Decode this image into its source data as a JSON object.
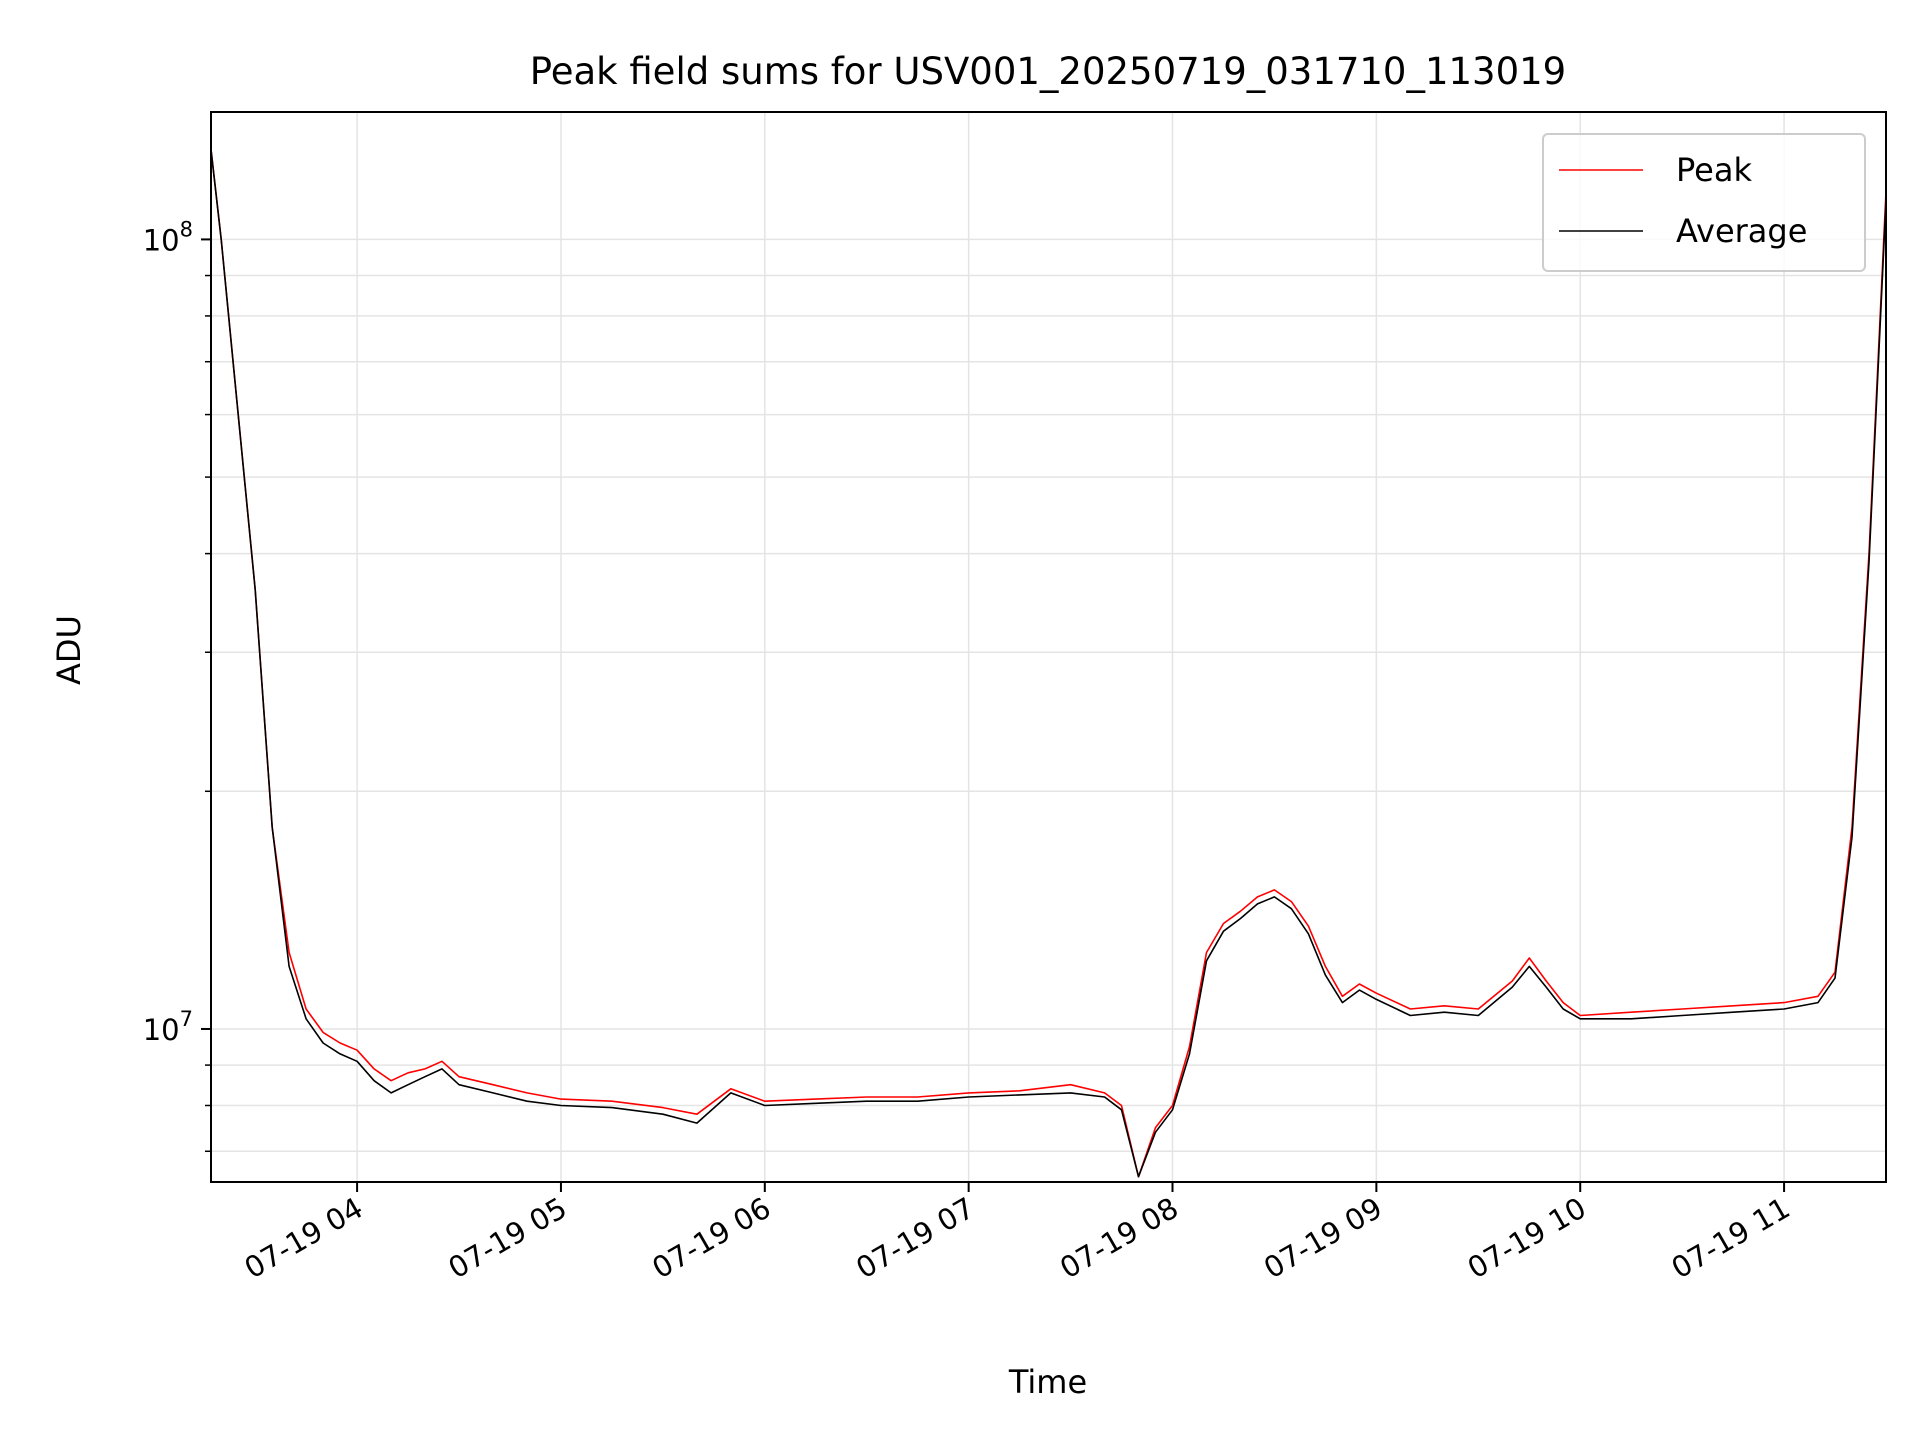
{
  "chart_data": {
    "type": "line",
    "title": "Peak field sums for USV001_20250719_031710_113019",
    "xlabel": "Time",
    "ylabel": "ADU",
    "yscale": "log",
    "xlim": [
      "07-19 03:17",
      "07-19 11:30"
    ],
    "ylim": [
      6400000,
      145000000
    ],
    "grid": true,
    "legend_placement": "top-right",
    "x_ticks": [
      "07-19 04",
      "07-19 05",
      "07-19 06",
      "07-19 07",
      "07-19 08",
      "07-19 09",
      "07-19 10",
      "07-19 11"
    ],
    "y_tick_labels": [
      {
        "value": 10000000,
        "base": "10",
        "exp": "7"
      },
      {
        "value": 100000000,
        "base": "10",
        "exp": "8"
      }
    ],
    "series": [
      {
        "name": "Peak",
        "color": "#ff0000",
        "x": [
          "07-19 03:17",
          "07-19 03:20",
          "07-19 03:25",
          "07-19 03:30",
          "07-19 03:35",
          "07-19 03:40",
          "07-19 03:45",
          "07-19 03:50",
          "07-19 03:55",
          "07-19 04:00",
          "07-19 04:05",
          "07-19 04:10",
          "07-19 04:15",
          "07-19 04:20",
          "07-19 04:25",
          "07-19 04:30",
          "07-19 04:40",
          "07-19 04:50",
          "07-19 05:00",
          "07-19 05:15",
          "07-19 05:30",
          "07-19 05:40",
          "07-19 05:50",
          "07-19 06:00",
          "07-19 06:15",
          "07-19 06:30",
          "07-19 06:45",
          "07-19 07:00",
          "07-19 07:15",
          "07-19 07:30",
          "07-19 07:40",
          "07-19 07:45",
          "07-19 07:50",
          "07-19 07:55",
          "07-19 08:00",
          "07-19 08:05",
          "07-19 08:10",
          "07-19 08:15",
          "07-19 08:20",
          "07-19 08:25",
          "07-19 08:30",
          "07-19 08:35",
          "07-19 08:40",
          "07-19 08:45",
          "07-19 08:50",
          "07-19 08:55",
          "07-19 09:00",
          "07-19 09:10",
          "07-19 09:20",
          "07-19 09:30",
          "07-19 09:40",
          "07-19 09:45",
          "07-19 09:50",
          "07-19 09:55",
          "07-19 10:00",
          "07-19 10:15",
          "07-19 10:30",
          "07-19 10:45",
          "07-19 11:00",
          "07-19 11:10",
          "07-19 11:15",
          "07-19 11:20",
          "07-19 11:25",
          "07-19 11:30"
        ],
        "values": [
          130000000,
          100000000,
          60000000,
          36000000,
          18000000,
          12500000,
          10600000,
          9900000,
          9600000,
          9400000,
          8900000,
          8600000,
          8800000,
          8900000,
          9100000,
          8700000,
          8500000,
          8300000,
          8150000,
          8100000,
          7950000,
          7800000,
          8400000,
          8100000,
          8150000,
          8200000,
          8200000,
          8300000,
          8350000,
          8500000,
          8300000,
          8000000,
          6500000,
          7500000,
          8000000,
          9500000,
          12500000,
          13600000,
          14100000,
          14700000,
          15000000,
          14500000,
          13500000,
          12000000,
          11000000,
          11400000,
          11100000,
          10600000,
          10700000,
          10600000,
          11500000,
          12300000,
          11500000,
          10800000,
          10400000,
          10500000,
          10600000,
          10700000,
          10800000,
          11000000,
          11800000,
          18000000,
          40000000,
          115000000
        ]
      },
      {
        "name": "Average",
        "color": "#000000",
        "x": [
          "07-19 03:17",
          "07-19 03:20",
          "07-19 03:25",
          "07-19 03:30",
          "07-19 03:35",
          "07-19 03:40",
          "07-19 03:45",
          "07-19 03:50",
          "07-19 03:55",
          "07-19 04:00",
          "07-19 04:05",
          "07-19 04:10",
          "07-19 04:15",
          "07-19 04:20",
          "07-19 04:25",
          "07-19 04:30",
          "07-19 04:40",
          "07-19 04:50",
          "07-19 05:00",
          "07-19 05:15",
          "07-19 05:30",
          "07-19 05:40",
          "07-19 05:50",
          "07-19 06:00",
          "07-19 06:15",
          "07-19 06:30",
          "07-19 06:45",
          "07-19 07:00",
          "07-19 07:15",
          "07-19 07:30",
          "07-19 07:40",
          "07-19 07:45",
          "07-19 07:50",
          "07-19 07:55",
          "07-19 08:00",
          "07-19 08:05",
          "07-19 08:10",
          "07-19 08:15",
          "07-19 08:20",
          "07-19 08:25",
          "07-19 08:30",
          "07-19 08:35",
          "07-19 08:40",
          "07-19 08:45",
          "07-19 08:50",
          "07-19 08:55",
          "07-19 09:00",
          "07-19 09:10",
          "07-19 09:20",
          "07-19 09:30",
          "07-19 09:40",
          "07-19 09:45",
          "07-19 09:50",
          "07-19 09:55",
          "07-19 10:00",
          "07-19 10:15",
          "07-19 10:30",
          "07-19 10:45",
          "07-19 11:00",
          "07-19 11:10",
          "07-19 11:15",
          "07-19 11:20",
          "07-19 11:25",
          "07-19 11:30"
        ],
        "values": [
          130000000,
          100000000,
          60000000,
          36000000,
          18000000,
          12000000,
          10300000,
          9600000,
          9300000,
          9100000,
          8600000,
          8300000,
          8500000,
          8700000,
          8900000,
          8500000,
          8300000,
          8100000,
          8000000,
          7950000,
          7800000,
          7600000,
          8300000,
          8000000,
          8050000,
          8100000,
          8100000,
          8200000,
          8250000,
          8300000,
          8200000,
          7900000,
          6500000,
          7400000,
          7900000,
          9300000,
          12200000,
          13300000,
          13800000,
          14400000,
          14700000,
          14200000,
          13200000,
          11700000,
          10800000,
          11200000,
          10900000,
          10400000,
          10500000,
          10400000,
          11300000,
          12000000,
          11300000,
          10600000,
          10300000,
          10300000,
          10400000,
          10500000,
          10600000,
          10800000,
          11600000,
          17500000,
          39000000,
          112000000
        ]
      }
    ]
  }
}
